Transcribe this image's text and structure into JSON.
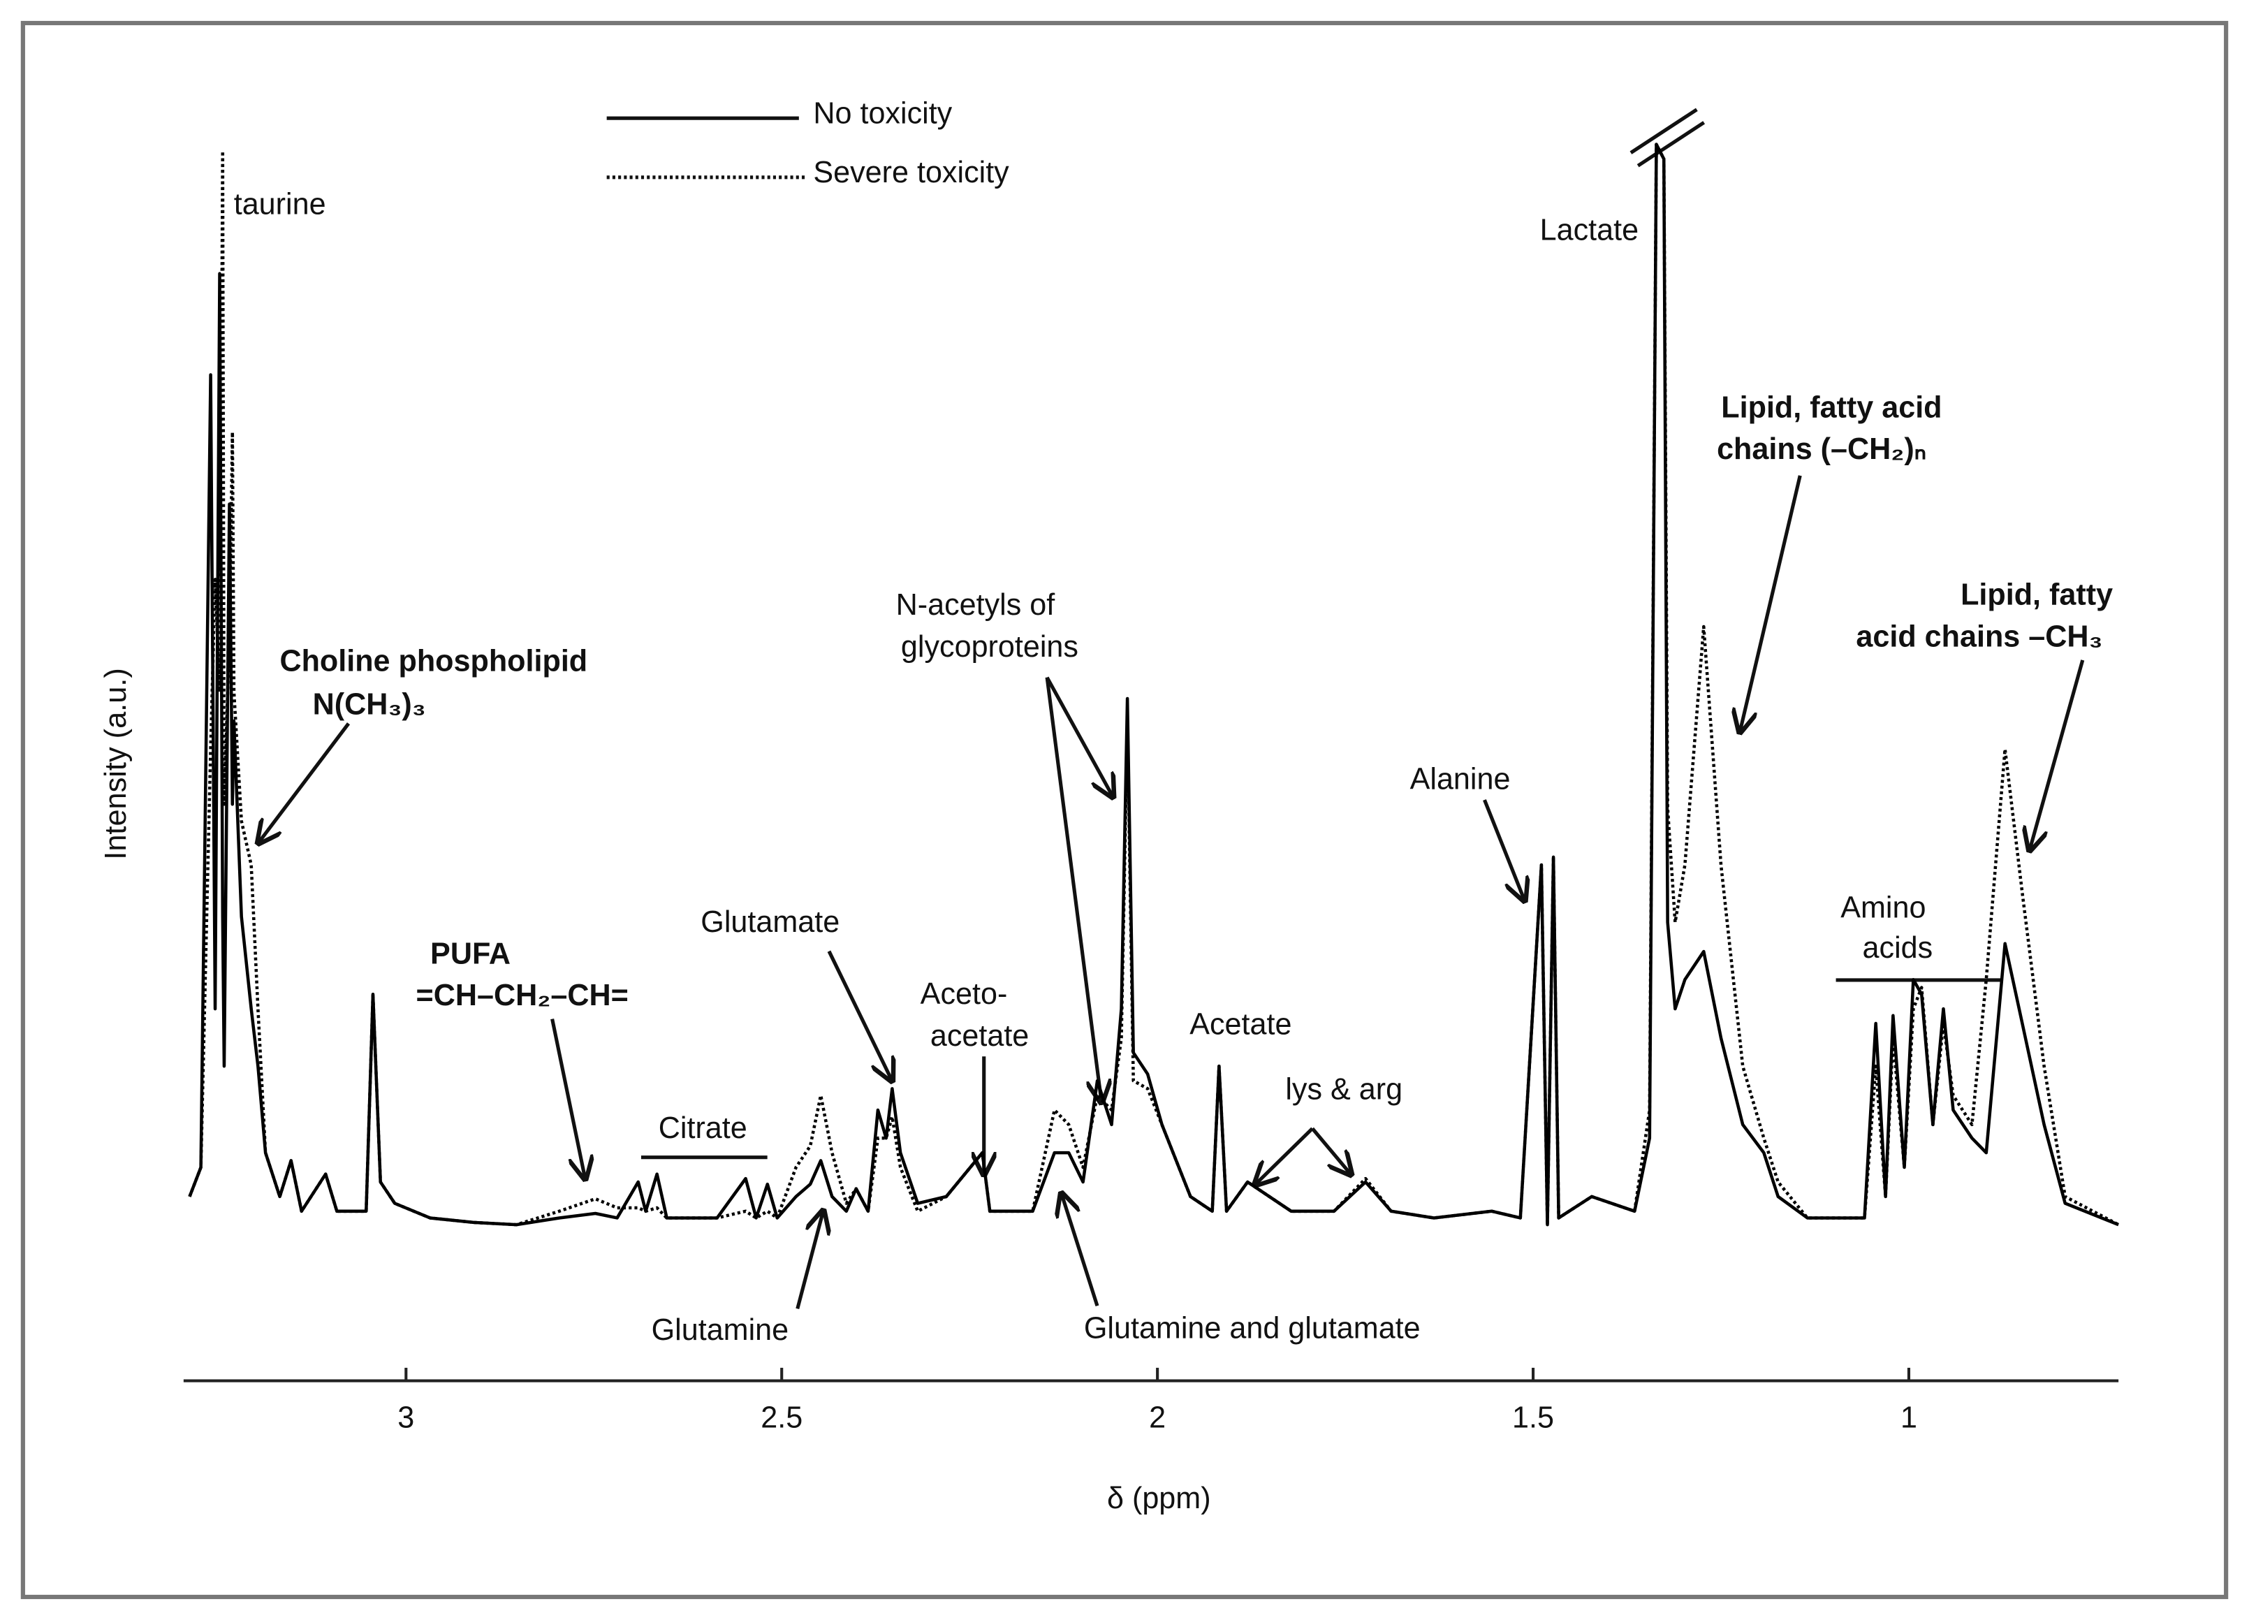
{
  "chart_data": {
    "type": "line",
    "x_label": "δ (ppm)",
    "y_label": "Intensity (a.u.)",
    "xlim": [
      3.296,
      0.721
    ],
    "xticks": [
      3,
      2.5,
      2,
      1.5,
      1
    ],
    "ylim": [
      0,
      100
    ],
    "x_reversed": true,
    "grid": false,
    "x": [
      3.288,
      3.273,
      3.26,
      3.254,
      3.248,
      3.244,
      3.242,
      3.235,
      3.231,
      3.229,
      3.219,
      3.206,
      3.197,
      3.187,
      3.168,
      3.153,
      3.139,
      3.107,
      3.092,
      3.053,
      3.044,
      3.034,
      3.015,
      2.968,
      2.91,
      2.853,
      2.796,
      2.748,
      2.719,
      2.691,
      2.681,
      2.666,
      2.653,
      2.586,
      2.548,
      2.534,
      2.519,
      2.506,
      2.481,
      2.462,
      2.448,
      2.433,
      2.414,
      2.401,
      2.385,
      2.372,
      2.361,
      2.353,
      2.342,
      2.319,
      2.281,
      2.233,
      2.223,
      2.166,
      2.137,
      2.118,
      2.099,
      2.08,
      2.061,
      2.048,
      2.04,
      2.032,
      2.013,
      1.994,
      1.956,
      1.927,
      1.918,
      1.908,
      1.88,
      1.822,
      1.765,
      1.723,
      1.689,
      1.632,
      1.555,
      1.517,
      1.489,
      1.481,
      1.473,
      1.466,
      1.422,
      1.365,
      1.345,
      1.336,
      1.326,
      1.321,
      1.311,
      1.298,
      1.273,
      1.25,
      1.221,
      1.193,
      1.174,
      1.135,
      1.059,
      1.044,
      1.031,
      1.021,
      1.006,
      0.994,
      0.983,
      0.968,
      0.954,
      0.941,
      0.916,
      0.897,
      0.872,
      0.849,
      0.82,
      0.792,
      0.721
    ],
    "series": [
      {
        "name": "No toxicity",
        "color": "#000000",
        "line_style": "solid",
        "values": [
          5.1,
          7.7,
          78.2,
          21.8,
          87.2,
          30.0,
          16.7,
          66.7,
          40.0,
          47.4,
          30.0,
          21.8,
          16.7,
          9.0,
          5.1,
          8.3,
          3.8,
          7.1,
          3.8,
          3.8,
          23.1,
          6.4,
          4.5,
          3.2,
          2.8,
          2.6,
          3.2,
          3.6,
          3.2,
          6.4,
          3.8,
          7.1,
          3.2,
          3.2,
          6.7,
          3.2,
          6.2,
          3.2,
          5.1,
          6.2,
          8.3,
          5.1,
          3.8,
          5.8,
          3.8,
          12.8,
          10.3,
          14.7,
          9.0,
          4.5,
          5.1,
          9.0,
          3.8,
          3.8,
          9.0,
          9.0,
          6.4,
          15.4,
          11.5,
          21.8,
          49.4,
          17.9,
          16.0,
          11.5,
          5.1,
          3.8,
          16.7,
          3.8,
          6.4,
          3.8,
          3.8,
          6.4,
          3.8,
          3.2,
          3.8,
          3.2,
          34.6,
          2.6,
          35.3,
          3.2,
          5.1,
          3.8,
          10.3,
          98.7,
          97.4,
          29.5,
          21.8,
          24.4,
          26.9,
          19.2,
          11.5,
          9.0,
          5.1,
          3.2,
          3.2,
          20.5,
          5.1,
          21.2,
          7.7,
          24.4,
          23.1,
          11.5,
          21.8,
          12.8,
          10.3,
          9.0,
          27.6,
          20.5,
          11.5,
          4.5,
          2.6
        ]
      },
      {
        "name": "Severe toxicity",
        "color": "#000000",
        "line_style": "dotted",
        "values": [
          5.1,
          7.7,
          45.0,
          60.0,
          50.0,
          98.1,
          40.0,
          55.0,
          73.1,
          50.0,
          38.5,
          34.6,
          21.8,
          9.0,
          5.1,
          8.3,
          3.8,
          7.1,
          3.8,
          3.8,
          23.1,
          6.4,
          4.5,
          3.2,
          2.8,
          2.6,
          3.8,
          4.9,
          4.1,
          4.1,
          3.8,
          4.1,
          3.2,
          3.2,
          3.8,
          3.2,
          3.8,
          3.2,
          7.7,
          9.6,
          14.1,
          9.0,
          4.5,
          5.8,
          3.8,
          10.3,
          10.3,
          12.2,
          7.7,
          3.8,
          5.1,
          9.0,
          3.8,
          3.8,
          12.8,
          11.5,
          7.7,
          14.1,
          12.8,
          19.2,
          47.4,
          15.4,
          14.7,
          11.5,
          5.1,
          3.8,
          16.7,
          3.8,
          6.4,
          3.8,
          3.8,
          6.7,
          3.8,
          3.2,
          3.8,
          3.2,
          34.6,
          2.6,
          35.3,
          3.2,
          5.1,
          3.8,
          12.8,
          98.7,
          97.4,
          39.7,
          29.5,
          34.6,
          55.8,
          34.6,
          16.7,
          10.3,
          6.4,
          3.2,
          3.2,
          16.7,
          5.1,
          19.2,
          7.7,
          21.8,
          23.7,
          11.5,
          20.5,
          14.1,
          11.5,
          24.4,
          44.9,
          32.1,
          16.7,
          5.1,
          2.6
        ]
      }
    ],
    "annotations": [
      "taurine",
      "Choline phospholipid",
      "N(CH₃)₃",
      "PUFA",
      "=CH–CH₂–CH=",
      "Citrate",
      "Glutamine",
      "Glutamate",
      "Aceto-",
      "acetate",
      "N-acetyls of",
      "glycoproteins",
      "Glutamine and glutamate",
      "Acetate",
      "lys & arg",
      "Alanine",
      "Lactate",
      "Lipid, fatty acid",
      "chains (–CH₂)ₙ",
      "Amino",
      "acids",
      "Lipid, fatty",
      "acid chains –CH₃"
    ]
  }
}
